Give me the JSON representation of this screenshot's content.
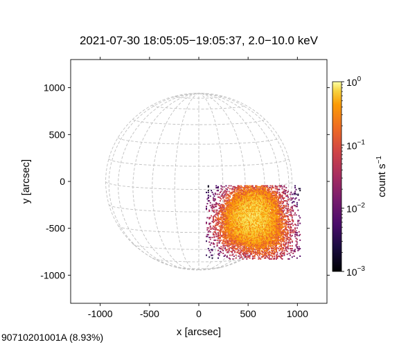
{
  "chart_data": {
    "type": "heatmap",
    "title": "2021-07-30 18:05:05−19:05:37, 2.0−10.0 keV",
    "xlabel": "x [arcsec]",
    "ylabel": "y [arcsec]",
    "xlim": [
      -1300,
      1300
    ],
    "ylim": [
      -1300,
      1300
    ],
    "xticks": [
      -1000,
      -500,
      0,
      500,
      1000
    ],
    "xtick_labels": [
      "-1000",
      "-500",
      "0",
      "500",
      "1000"
    ],
    "yticks": [
      1000,
      500,
      0,
      -500,
      -1000
    ],
    "ytick_labels": [
      "1000",
      "500",
      "0",
      "-500",
      "-1000"
    ],
    "solar_radius_arcsec": 945,
    "grid": "heliographic",
    "image_extent": {
      "x": [
        70,
        1030
      ],
      "y": [
        -830,
        -40
      ]
    },
    "emission_peaks": [
      {
        "x": 560,
        "y": -300,
        "rel": 1.0
      },
      {
        "x": 430,
        "y": -480,
        "rel": 0.55
      },
      {
        "x": 680,
        "y": -580,
        "rel": 0.4
      }
    ],
    "colorbar": {
      "label": "count s⁻¹",
      "label_base": "count s",
      "label_exp": "−1",
      "scale": "log",
      "colormap": "inferno",
      "range": [
        0.001,
        1
      ],
      "ticks": [
        {
          "value": 1,
          "base": "10",
          "exp": "0"
        },
        {
          "value": 0.1,
          "base": "10",
          "exp": "−1"
        },
        {
          "value": 0.01,
          "base": "10",
          "exp": "−2"
        },
        {
          "value": 0.001,
          "base": "10",
          "exp": "−3"
        }
      ]
    }
  },
  "footer_text": "90710201001A (8.93%)",
  "colors": {
    "grid": "#c0c0c0",
    "axes": "#000000",
    "background": "#ffffff"
  }
}
